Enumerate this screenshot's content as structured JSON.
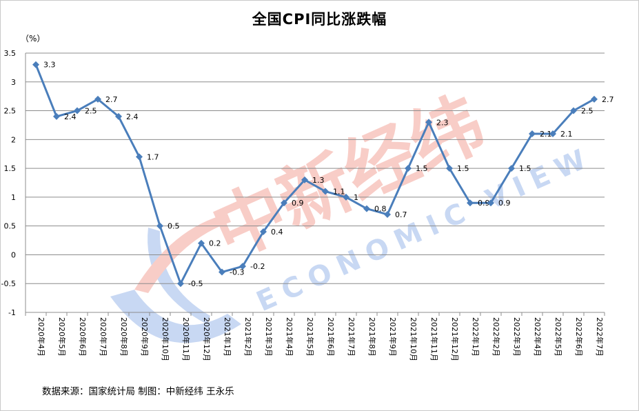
{
  "chart_data": {
    "type": "line",
    "title": "全国CPI同比涨跌幅",
    "unit_label": "（%）",
    "ylim": [
      -1,
      3.5
    ],
    "y_ticks": [
      "3.5",
      "3",
      "2.5",
      "2",
      "1.5",
      "1",
      "0.5",
      "0",
      "-0.5",
      "-1"
    ],
    "grid": "horizontal",
    "line_color": "#4a7ebb",
    "categories": [
      "2020年4月",
      "2020年5月",
      "2020年6月",
      "2020年7月",
      "2020年8月",
      "2020年9月",
      "2020年10月",
      "2020年11月",
      "2020年12月",
      "2021年1月",
      "2021年2月",
      "2021年3月",
      "2021年4月",
      "2021年5月",
      "2021年6月",
      "2021年7月",
      "2021年8月",
      "2021年9月",
      "2021年10月",
      "2021年11月",
      "2021年12月",
      "2022年1月",
      "2022年2月",
      "2022年3月",
      "2022年4月",
      "2022年5月",
      "2022年6月",
      "2022年7月"
    ],
    "values": [
      3.3,
      2.4,
      2.5,
      2.7,
      2.4,
      1.7,
      0.5,
      -0.5,
      0.2,
      -0.3,
      -0.2,
      0.4,
      0.9,
      1.3,
      1.1,
      1,
      0.8,
      0.7,
      1.5,
      2.3,
      1.5,
      0.9,
      0.9,
      1.5,
      2.1,
      2.1,
      2.5,
      2.7
    ],
    "data_labels": [
      "3.3",
      "2.4",
      "2.5",
      "2.7",
      "2.4",
      "1.7",
      "0.5",
      "-0.5",
      "0.2",
      "-0.3",
      "-0.2",
      "0.4",
      "0.9",
      "1.3",
      "1.1",
      "1",
      "0.8",
      "0.7",
      "1.5",
      "2.3",
      "1.5",
      "0.9",
      "0.9",
      "1.5",
      "2.1",
      "2.1",
      "2.5",
      "2.7"
    ]
  },
  "source_note": "数据来源：国家统计局 制图：中新经纬 王永乐",
  "watermark": {
    "text_cn": "中新经纬",
    "text_en": "ECONOMIC VIEW",
    "color_blue": "#9bb8ea",
    "color_red": "#f2a59a"
  }
}
